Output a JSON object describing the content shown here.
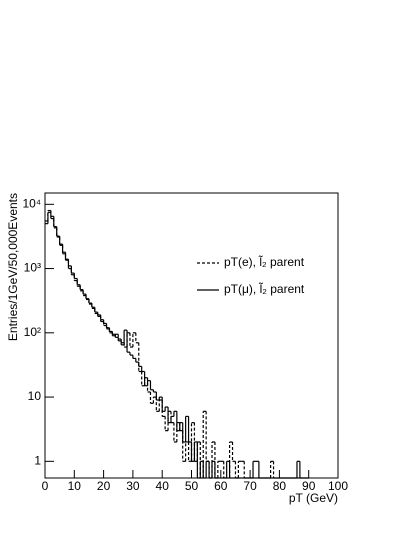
{
  "chart_data": {
    "type": "histogram",
    "x_label": "pT (GeV)",
    "y_label": "Entries/1GeV/50,000Events",
    "log_y": true,
    "legend": "upper right",
    "bins": [
      0,
      1,
      2,
      3,
      4,
      5,
      6,
      7,
      8,
      9,
      10,
      11,
      12,
      13,
      14,
      15,
      16,
      17,
      18,
      19,
      20,
      21,
      22,
      23,
      24,
      25,
      26,
      27,
      28,
      29,
      30,
      31,
      32,
      33,
      34,
      35,
      36,
      37,
      38,
      39,
      40,
      41,
      42,
      43,
      44,
      45,
      46,
      47,
      48,
      49,
      50,
      51,
      52,
      53,
      54,
      55,
      56,
      57,
      58,
      59,
      60,
      61,
      62,
      63,
      64,
      65,
      66,
      67,
      68,
      69,
      70,
      71,
      72,
      73,
      74,
      75,
      76,
      77,
      78,
      79,
      80,
      81,
      82,
      83,
      84,
      85,
      86,
      87,
      88,
      89,
      90
    ],
    "series": [
      {
        "name": "pT(e), l̃₂ parent",
        "color": "#000000",
        "linestyle": "dashed",
        "values": [
          5500,
          8000,
          6000,
          4300,
          3100,
          2300,
          1700,
          1350,
          1000,
          800,
          650,
          530,
          450,
          380,
          330,
          280,
          240,
          200,
          190,
          150,
          130,
          115,
          100,
          90,
          95,
          80,
          70,
          60,
          100,
          60,
          100,
          70,
          25,
          15,
          20,
          12,
          8,
          10,
          6,
          9,
          5,
          3,
          6,
          4,
          2,
          4,
          3,
          1,
          2,
          1,
          4,
          1,
          2,
          0,
          6,
          1,
          0,
          2,
          0,
          1,
          1,
          0,
          0,
          2,
          1,
          0,
          1,
          1,
          0,
          0,
          0,
          0,
          0,
          0,
          0,
          0,
          0,
          1,
          0,
          0,
          0,
          0,
          0,
          0,
          0,
          0,
          0,
          0,
          0,
          0
        ]
      },
      {
        "name": "pT(μ), l̃₂ parent",
        "color": "#000000",
        "linestyle": "solid",
        "values": [
          5000,
          7500,
          6500,
          4500,
          3200,
          2400,
          1800,
          1400,
          1100,
          850,
          700,
          560,
          470,
          400,
          340,
          290,
          250,
          210,
          180,
          160,
          140,
          120,
          105,
          95,
          85,
          75,
          65,
          110,
          50,
          45,
          40,
          35,
          30,
          25,
          15,
          18,
          13,
          12,
          9,
          10,
          6,
          7,
          4,
          5,
          6,
          3,
          4,
          2,
          5,
          2,
          1,
          2,
          0,
          1,
          0,
          1,
          0,
          1,
          0,
          0,
          0,
          0,
          1,
          0,
          0,
          0,
          0,
          0,
          0,
          0,
          0,
          1,
          1,
          0,
          0,
          0,
          0,
          0,
          0,
          0,
          0,
          0,
          0,
          0,
          0,
          0,
          1,
          0,
          0,
          0
        ]
      }
    ],
    "xlim": [
      0,
      100
    ],
    "xticks": [
      0,
      10,
      20,
      30,
      40,
      50,
      60,
      70,
      80,
      90,
      100
    ],
    "ylim": [
      0.55,
      15000
    ],
    "yticks": [
      {
        "value": 1,
        "label": "1"
      },
      {
        "value": 10,
        "label": "10"
      },
      {
        "value": 100,
        "label": "10²"
      },
      {
        "value": 1000,
        "label": "10³"
      },
      {
        "value": 10000,
        "label": "10⁴"
      }
    ]
  }
}
